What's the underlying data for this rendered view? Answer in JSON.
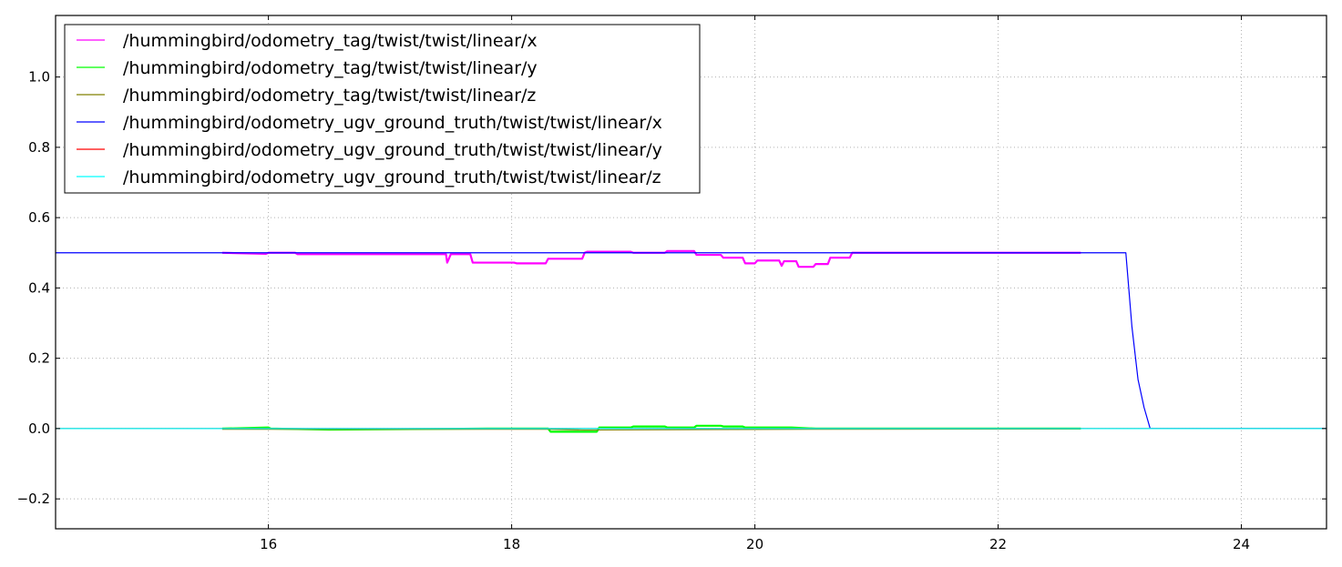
{
  "chart_data": {
    "type": "line",
    "title": "",
    "xlabel": "",
    "ylabel": "",
    "xlim": [
      14.25,
      24.7
    ],
    "ylim": [
      -0.285,
      1.175
    ],
    "x_ticks": [
      16,
      18,
      20,
      22,
      24
    ],
    "y_ticks": [
      -0.2,
      0.0,
      0.2,
      0.4,
      0.6,
      0.8,
      1.0
    ],
    "x_tick_labels": [
      "16",
      "18",
      "20",
      "22",
      "24"
    ],
    "y_tick_labels": [
      "−0.2",
      "0.0",
      "0.2",
      "0.4",
      "0.6",
      "0.8",
      "1.0"
    ],
    "grid": true,
    "legend_position": "top-left",
    "series": [
      {
        "name": "/hummingbird/odometry_tag/twist/twist/linear/x",
        "color": "#ff00ff",
        "x": [
          15.62,
          15.98,
          16.0,
          16.22,
          16.24,
          17.46,
          17.47,
          17.5,
          17.52,
          17.66,
          17.68,
          17.7,
          18.02,
          18.04,
          18.28,
          18.3,
          18.58,
          18.6,
          18.62,
          18.98,
          19.0,
          19.26,
          19.28,
          19.5,
          19.52,
          19.72,
          19.74,
          19.9,
          19.92,
          20.0,
          20.02,
          20.2,
          20.22,
          20.24,
          20.34,
          20.36,
          20.48,
          20.5,
          20.6,
          20.62,
          20.78,
          20.8,
          22.68
        ],
        "y": [
          0.5,
          0.497,
          0.5,
          0.5,
          0.496,
          0.496,
          0.472,
          0.496,
          0.496,
          0.496,
          0.472,
          0.472,
          0.472,
          0.47,
          0.47,
          0.483,
          0.483,
          0.5,
          0.503,
          0.503,
          0.5,
          0.5,
          0.505,
          0.505,
          0.494,
          0.494,
          0.486,
          0.486,
          0.47,
          0.47,
          0.478,
          0.478,
          0.463,
          0.476,
          0.476,
          0.46,
          0.46,
          0.468,
          0.468,
          0.486,
          0.486,
          0.5,
          0.5
        ]
      },
      {
        "name": "/hummingbird/odometry_tag/twist/twist/linear/y",
        "color": "#00ff00",
        "x": [
          15.62,
          16.0,
          16.02,
          16.5,
          17.8,
          18.3,
          18.32,
          18.7,
          18.72,
          18.98,
          19.0,
          19.26,
          19.28,
          19.5,
          19.52,
          19.72,
          19.74,
          19.9,
          19.92,
          20.3,
          20.5,
          20.8,
          22.68
        ],
        "y": [
          0.0,
          0.003,
          0.0,
          -0.003,
          0.0,
          0.0,
          -0.009,
          -0.009,
          0.003,
          0.003,
          0.006,
          0.006,
          0.003,
          0.003,
          0.008,
          0.008,
          0.006,
          0.006,
          0.003,
          0.003,
          0.0,
          0.0,
          0.0
        ]
      },
      {
        "name": "/hummingbird/odometry_tag/twist/twist/linear/z",
        "color": "#808000",
        "x": [
          15.62,
          18.3,
          18.6,
          20.5,
          22.68
        ],
        "y": [
          -0.002,
          -0.002,
          -0.004,
          -0.002,
          -0.001
        ]
      },
      {
        "name": "/hummingbird/odometry_ugv_ground_truth/twist/twist/linear/x",
        "color": "#0000ff",
        "x": [
          14.25,
          23.05,
          23.1,
          23.15,
          23.2,
          23.25,
          24.7
        ],
        "y": [
          0.5,
          0.5,
          0.29,
          0.14,
          0.06,
          0.0,
          0.0
        ]
      },
      {
        "name": "/hummingbird/odometry_ugv_ground_truth/twist/twist/linear/y",
        "color": "#ff0000",
        "x": [
          14.25,
          24.7
        ],
        "y": [
          0.0,
          0.0
        ]
      },
      {
        "name": "/hummingbird/odometry_ugv_ground_truth/twist/twist/linear/z",
        "color": "#00ffff",
        "x": [
          14.25,
          24.7
        ],
        "y": [
          0.0,
          0.0
        ]
      }
    ]
  }
}
